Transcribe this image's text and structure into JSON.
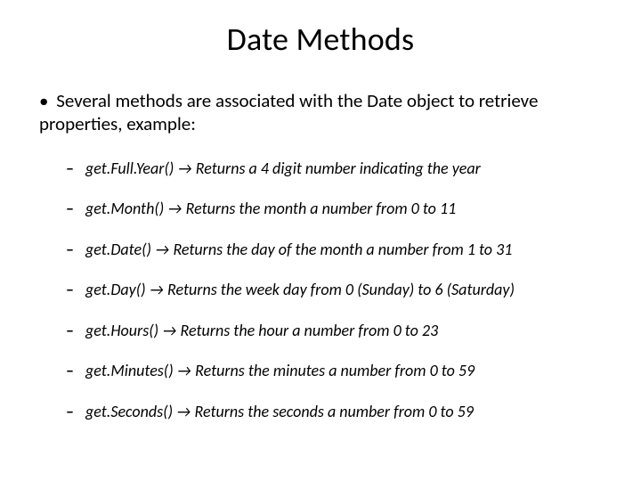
{
  "title": "Date Methods",
  "intro_bullet": "•",
  "intro": "Several methods are associated with the Date object to retrieve properties, example:",
  "methods": [
    "get.Full.Year() → Returns a 4 digit number indicating the year",
    "get.Month() → Returns the month a number from 0 to 11",
    "get.Date() → Returns the day of the month a number from 1 to 31",
    "get.Day() → Returns the week day from 0 (Sunday) to 6 (Saturday)",
    "get.Hours() → Returns the hour a number from 0 to 23",
    "get.Minutes() → Returns the minutes a number from 0 to 59",
    "get.Seconds() → Returns the seconds a number from 0 to 59"
  ],
  "colors": {
    "background": "#ffffff",
    "text": "#000000"
  },
  "typography": {
    "title_fontsize": 36,
    "intro_fontsize": 21,
    "method_fontsize": 18,
    "method_style": "italic"
  }
}
